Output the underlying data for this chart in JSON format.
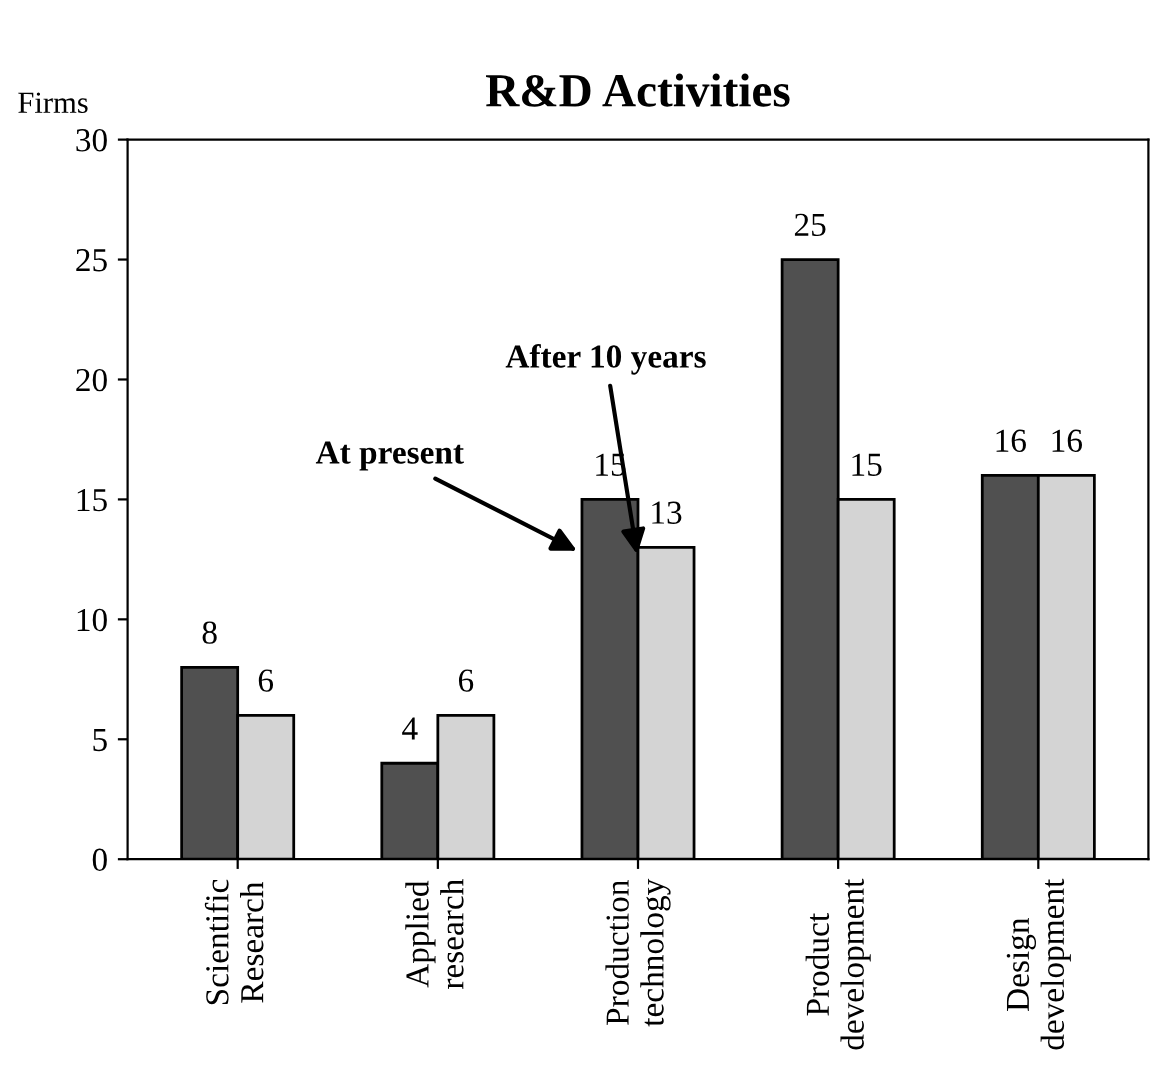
{
  "chart_data": {
    "type": "bar",
    "title": "R&D Activities",
    "ylabel": "Firms",
    "categories": [
      "Scientific\nResearch",
      "Applied\nresearch",
      "Production\ntechnology",
      "Product\ndevelopment",
      "Design\ndevelopment"
    ],
    "series": [
      {
        "name": "At present",
        "color": "#505050",
        "values": [
          8,
          4,
          15,
          25,
          16
        ]
      },
      {
        "name": "After 10 years",
        "color": "#d4d4d4",
        "values": [
          6,
          6,
          13,
          15,
          16
        ]
      }
    ],
    "ylim": [
      0,
      30
    ],
    "yticks": [
      0,
      5,
      10,
      15,
      20,
      25,
      30
    ],
    "data_labels": true,
    "grid": false,
    "legend": false
  }
}
